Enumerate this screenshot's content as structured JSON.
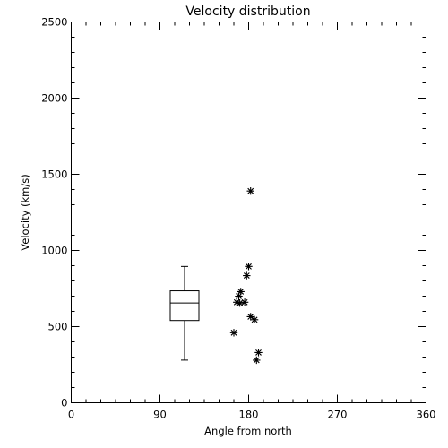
{
  "chart_data": {
    "type": "scatter",
    "title": "Velocity distribution",
    "xlabel": "Angle from north",
    "ylabel": "Velocity (km/s)",
    "xlim": [
      0,
      360
    ],
    "ylim": [
      0,
      2500
    ],
    "xticks": [
      0,
      90,
      180,
      270,
      360
    ],
    "yticks": [
      0,
      500,
      1000,
      1500,
      2000,
      2500
    ],
    "grid": false,
    "legend": "none",
    "box": {
      "x": 115,
      "whisker_low": 280,
      "q1": 540,
      "median": 655,
      "q3": 735,
      "whisker_high": 895
    },
    "points": [
      {
        "x": 182,
        "y": 1390
      },
      {
        "x": 180,
        "y": 895
      },
      {
        "x": 178,
        "y": 835
      },
      {
        "x": 172,
        "y": 730
      },
      {
        "x": 170,
        "y": 700
      },
      {
        "x": 176,
        "y": 660
      },
      {
        "x": 171,
        "y": 655
      },
      {
        "x": 168,
        "y": 660
      },
      {
        "x": 182,
        "y": 565
      },
      {
        "x": 186,
        "y": 545
      },
      {
        "x": 165,
        "y": 460
      },
      {
        "x": 190,
        "y": 330
      },
      {
        "x": 188,
        "y": 280
      }
    ]
  }
}
